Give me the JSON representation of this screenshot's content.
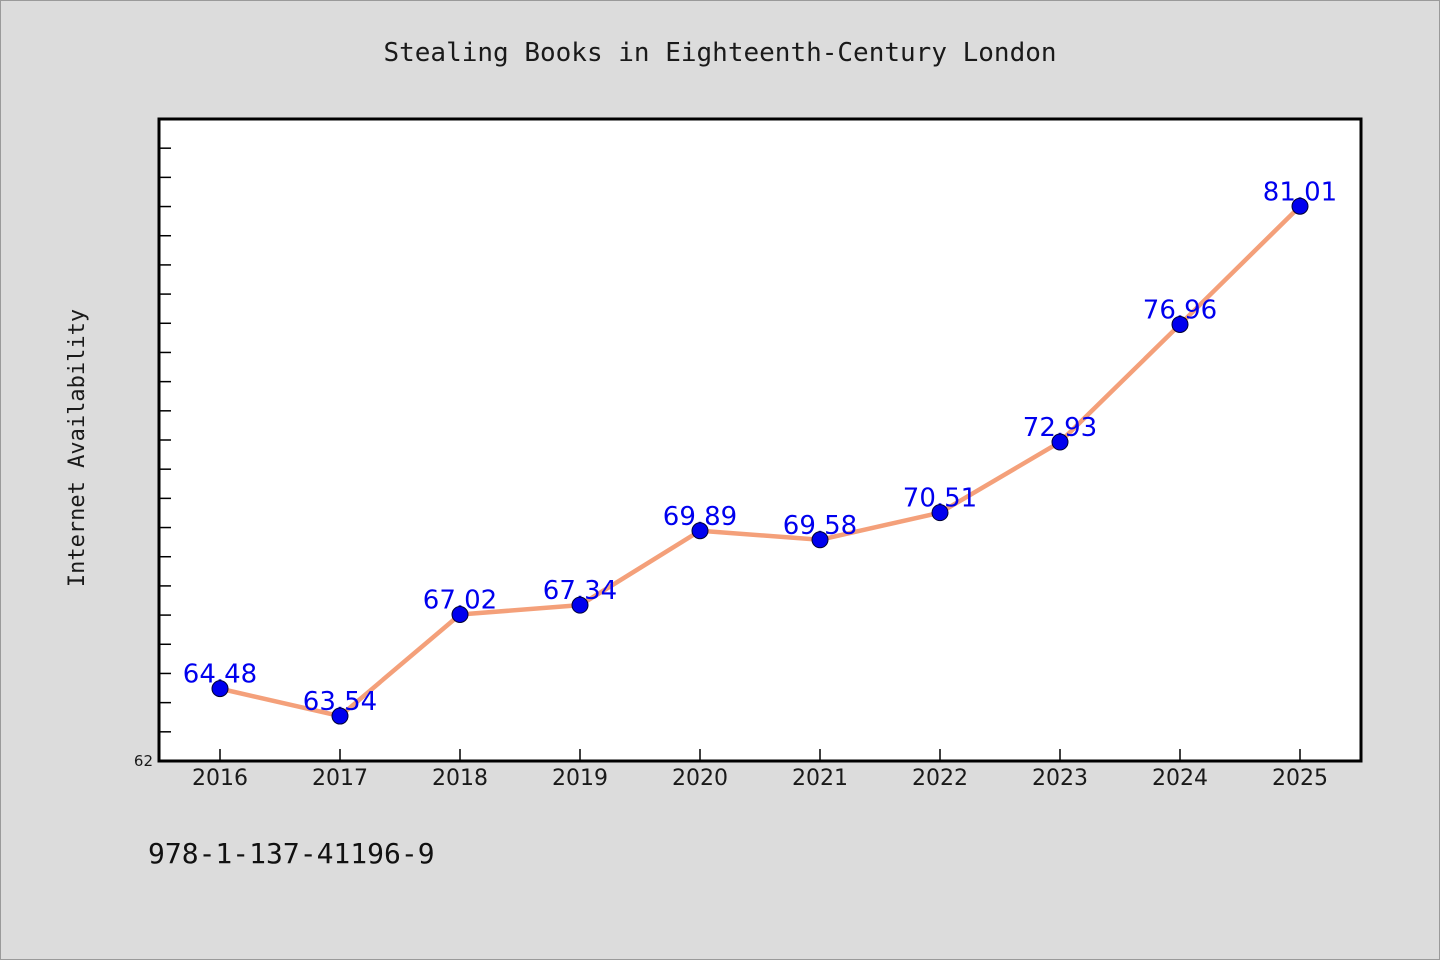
{
  "chart_data": {
    "type": "line",
    "title": "Stealing Books in Eighteenth-Century London",
    "xlabel": "",
    "ylabel": "Internet Availability",
    "categories": [
      "2016",
      "2017",
      "2018",
      "2019",
      "2020",
      "2021",
      "2022",
      "2023",
      "2024",
      "2025"
    ],
    "series": [
      {
        "values": [
          64.48,
          63.54,
          67.02,
          67.34,
          69.89,
          69.58,
          70.51,
          72.93,
          76.96,
          81.01
        ],
        "data_labels": [
          "64.48",
          "63.54",
          "67.02",
          "67.34",
          "69.89",
          "69.58",
          "70.51",
          "72.93",
          "76.96",
          "81.01"
        ]
      }
    ],
    "ylim": [
      62,
      84
    ],
    "y_tick_labels": [
      "62"
    ],
    "y_minor_tick_step": 1,
    "grid": false,
    "legend": "none",
    "colors": {
      "line": "#f4a07a",
      "marker": "#0000ee",
      "data_label": "#0000ee",
      "plot_background": "#ffffff",
      "page_background": "#dcdcdc"
    }
  },
  "footer": {
    "text": "978-1-137-41196-9"
  }
}
